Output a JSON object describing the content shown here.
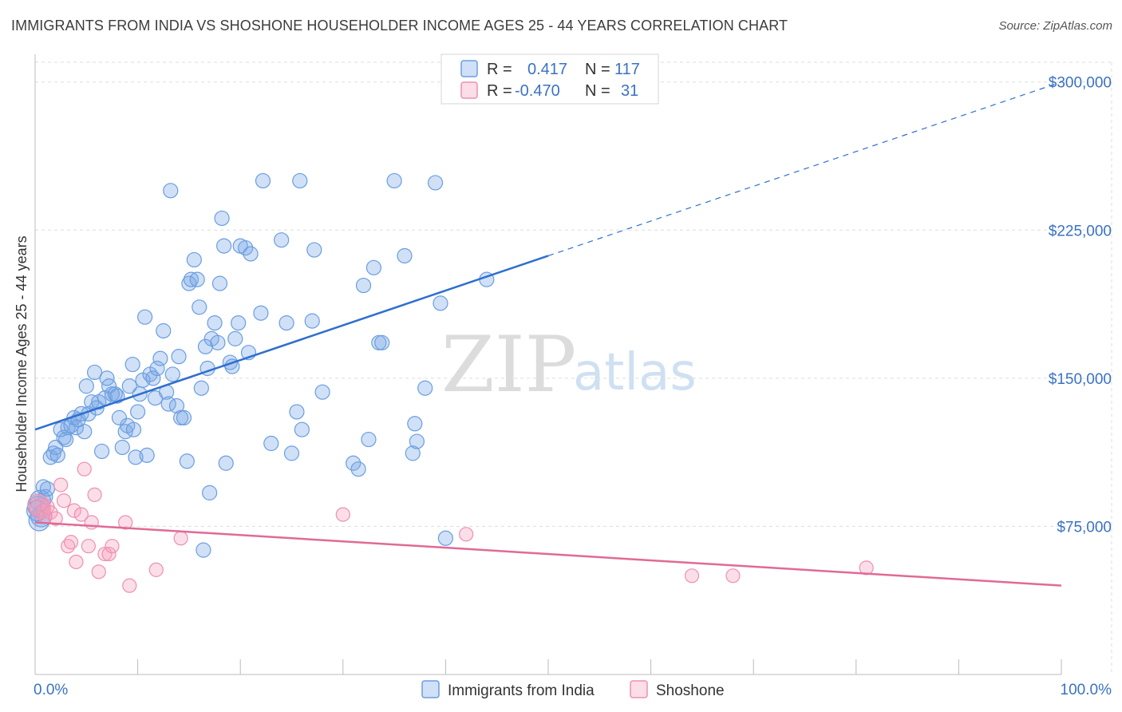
{
  "title": "IMMIGRANTS FROM INDIA VS SHOSHONE HOUSEHOLDER INCOME AGES 25 - 44 YEARS CORRELATION CHART",
  "source": "Source: ZipAtlas.com",
  "watermark": {
    "zip": "ZIP",
    "atlas": "atlas"
  },
  "colors": {
    "india": "#6a9ee0",
    "india_fill": "rgba(120,165,230,0.35)",
    "india_line": "#2f6fcf",
    "shoshone": "#ee8fb0",
    "shoshone_fill": "rgba(245,160,190,0.35)",
    "shoshone_line": "#e06a96",
    "grid": "#dddddd",
    "axis_text": "#3a72c4"
  },
  "legend": {
    "rows": [
      {
        "r_label": "R =",
        "r_value": "0.417",
        "n_label": "N =",
        "n_value": "117"
      },
      {
        "r_label": "R =",
        "r_value": "-0.470",
        "n_label": "N =",
        "n_value": "31"
      }
    ]
  },
  "bottom_legend": [
    "Immigrants from India",
    "Shoshone"
  ],
  "chart_data": {
    "type": "scatter",
    "xlabel": "",
    "ylabel": "Householder Income Ages 25 - 44 years",
    "xlim": [
      0,
      100
    ],
    "ylim": [
      0,
      310000
    ],
    "x_tick_labels": [
      "0.0%",
      "100.0%"
    ],
    "y_ticks": [
      75000,
      150000,
      225000,
      300000
    ],
    "y_tick_labels": [
      "$75,000",
      "$150,000",
      "$225,000",
      "$300,000"
    ],
    "grid": true,
    "legend_position": "top-center",
    "series": [
      {
        "name": "Immigrants from India",
        "r": 0.417,
        "n": 117,
        "trend": {
          "x0": 0,
          "y0": 124000,
          "x1": 50,
          "y1": 212000,
          "dashed_to_x": 100,
          "dashed_to_y": 300000
        },
        "points": [
          [
            0.5,
            88000
          ],
          [
            0.8,
            95000
          ],
          [
            1.0,
            90000
          ],
          [
            1.2,
            94000
          ],
          [
            1.5,
            110000
          ],
          [
            1.8,
            112000
          ],
          [
            2.0,
            115000
          ],
          [
            2.2,
            111000
          ],
          [
            2.5,
            124000
          ],
          [
            2.8,
            120000
          ],
          [
            3.0,
            119000
          ],
          [
            3.2,
            125000
          ],
          [
            3.5,
            126000
          ],
          [
            3.8,
            130000
          ],
          [
            4.0,
            125000
          ],
          [
            4.2,
            129000
          ],
          [
            4.5,
            132000
          ],
          [
            4.8,
            123000
          ],
          [
            5.0,
            146000
          ],
          [
            5.2,
            132000
          ],
          [
            5.5,
            138000
          ],
          [
            5.8,
            153000
          ],
          [
            6.0,
            135000
          ],
          [
            6.2,
            138000
          ],
          [
            6.5,
            113000
          ],
          [
            6.8,
            140000
          ],
          [
            7.0,
            150000
          ],
          [
            7.2,
            146000
          ],
          [
            7.5,
            142000
          ],
          [
            7.8,
            142000
          ],
          [
            8.0,
            141000
          ],
          [
            8.2,
            130000
          ],
          [
            8.5,
            115000
          ],
          [
            8.8,
            123000
          ],
          [
            9.0,
            126000
          ],
          [
            9.2,
            146000
          ],
          [
            9.5,
            157000
          ],
          [
            9.6,
            124000
          ],
          [
            9.8,
            110000
          ],
          [
            10.0,
            133000
          ],
          [
            10.2,
            142000
          ],
          [
            10.5,
            149000
          ],
          [
            10.7,
            181000
          ],
          [
            10.9,
            111000
          ],
          [
            11.2,
            152000
          ],
          [
            11.5,
            150000
          ],
          [
            11.7,
            140000
          ],
          [
            11.9,
            155000
          ],
          [
            12.2,
            160000
          ],
          [
            12.5,
            174000
          ],
          [
            12.8,
            143000
          ],
          [
            13.0,
            137000
          ],
          [
            13.2,
            245000
          ],
          [
            13.4,
            152000
          ],
          [
            13.8,
            136000
          ],
          [
            14.0,
            161000
          ],
          [
            14.2,
            130000
          ],
          [
            14.5,
            130000
          ],
          [
            14.8,
            108000
          ],
          [
            15.0,
            198000
          ],
          [
            15.2,
            200000
          ],
          [
            15.5,
            210000
          ],
          [
            15.8,
            200000
          ],
          [
            16.0,
            186000
          ],
          [
            16.2,
            145000
          ],
          [
            16.4,
            63000
          ],
          [
            16.6,
            166000
          ],
          [
            16.8,
            155000
          ],
          [
            17.0,
            92000
          ],
          [
            17.2,
            170000
          ],
          [
            17.5,
            178000
          ],
          [
            17.8,
            168000
          ],
          [
            18.0,
            198000
          ],
          [
            18.2,
            231000
          ],
          [
            18.4,
            217000
          ],
          [
            18.6,
            107000
          ],
          [
            19.0,
            158000
          ],
          [
            19.2,
            156000
          ],
          [
            19.5,
            170000
          ],
          [
            19.8,
            178000
          ],
          [
            20.0,
            217000
          ],
          [
            20.5,
            216000
          ],
          [
            20.8,
            163000
          ],
          [
            21.0,
            213000
          ],
          [
            22.0,
            183000
          ],
          [
            22.2,
            250000
          ],
          [
            23.0,
            117000
          ],
          [
            24.0,
            220000
          ],
          [
            24.5,
            178000
          ],
          [
            25.0,
            112000
          ],
          [
            25.5,
            133000
          ],
          [
            25.8,
            250000
          ],
          [
            26.0,
            124000
          ],
          [
            27.0,
            179000
          ],
          [
            27.2,
            215000
          ],
          [
            28.0,
            143000
          ],
          [
            31.0,
            107000
          ],
          [
            31.5,
            104000
          ],
          [
            32.0,
            197000
          ],
          [
            32.5,
            119000
          ],
          [
            33.0,
            206000
          ],
          [
            33.5,
            168000
          ],
          [
            33.8,
            168000
          ],
          [
            35.0,
            250000
          ],
          [
            36.0,
            212000
          ],
          [
            36.8,
            112000
          ],
          [
            37.0,
            127000
          ],
          [
            37.2,
            118000
          ],
          [
            38.0,
            145000
          ],
          [
            39.0,
            249000
          ],
          [
            39.5,
            188000
          ],
          [
            40.0,
            69000
          ],
          [
            44.0,
            200000
          ],
          [
            0.3,
            85000
          ],
          [
            0.4,
            78000
          ],
          [
            0.6,
            80000
          ],
          [
            0.2,
            83000
          ]
        ]
      },
      {
        "name": "Shoshone",
        "r": -0.47,
        "n": 31,
        "trend": {
          "x0": 0,
          "y0": 77000,
          "x1": 100,
          "y1": 45000
        },
        "points": [
          [
            0.3,
            86000
          ],
          [
            0.5,
            84000
          ],
          [
            0.8,
            83000
          ],
          [
            1.0,
            80000
          ],
          [
            1.2,
            85000
          ],
          [
            1.5,
            82000
          ],
          [
            2.0,
            79000
          ],
          [
            2.5,
            96000
          ],
          [
            2.8,
            88000
          ],
          [
            3.2,
            65000
          ],
          [
            3.5,
            67000
          ],
          [
            3.8,
            83000
          ],
          [
            4.0,
            57000
          ],
          [
            4.5,
            81000
          ],
          [
            4.8,
            104000
          ],
          [
            5.2,
            65000
          ],
          [
            5.5,
            77000
          ],
          [
            5.8,
            91000
          ],
          [
            6.2,
            52000
          ],
          [
            6.8,
            61000
          ],
          [
            7.2,
            61000
          ],
          [
            7.5,
            65000
          ],
          [
            8.8,
            77000
          ],
          [
            9.2,
            45000
          ],
          [
            11.8,
            53000
          ],
          [
            14.2,
            69000
          ],
          [
            30.0,
            81000
          ],
          [
            42.0,
            71000
          ],
          [
            64.0,
            50000
          ],
          [
            68.0,
            50000
          ],
          [
            81.0,
            54000
          ]
        ]
      }
    ]
  }
}
